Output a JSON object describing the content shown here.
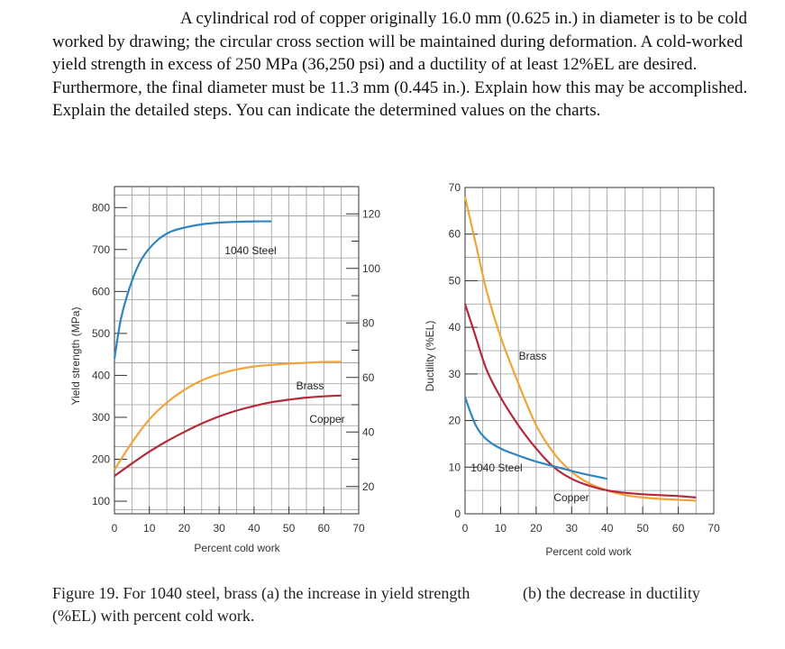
{
  "problem_text": "A cylindrical rod of copper originally 16.0 mm (0.625 in.) in diameter is to be cold worked by drawing; the circular cross section will be maintained during deformation. A cold-worked yield strength in excess of 250 MPa (36,250 psi) and a ductility of at least 12%EL are desired. Furthermore, the final diameter must be 11.3 mm (0.445 in.). Explain how this may be accomplished. Explain the detailed steps. You can indicate the determined values on the charts.",
  "caption_a": "Figure 19. For 1040 steel, brass (a) the increase in yield strength (%EL) with percent cold work.",
  "caption_b": "(b) the decrease in ductility",
  "colors": {
    "steel": "#2e86c1",
    "brass": "#f0a53a",
    "copper": "#b52a3a",
    "grid": "#999999",
    "axis": "#333333"
  },
  "chart_data": [
    {
      "type": "line",
      "xlabel": "Percent cold work",
      "ylabel": "Yield strength (MPa)",
      "xlim": [
        0,
        70
      ],
      "ylim": [
        70,
        850
      ],
      "xticks": [
        0,
        10,
        20,
        30,
        40,
        50,
        60,
        70
      ],
      "yticks": [
        100,
        200,
        300,
        400,
        500,
        600,
        700,
        800
      ],
      "secondary_ylabel_ticks": [
        "120",
        "100",
        "80",
        "60",
        "40",
        "20"
      ],
      "secondary_ytick_values": [
        120,
        100,
        80,
        60,
        40,
        20
      ],
      "secondary_ylim": [
        10,
        130
      ],
      "grid": true,
      "series": [
        {
          "name": "1040 Steel",
          "label": "1040 Steel",
          "color": "steel",
          "x": [
            0,
            2,
            5,
            8,
            12,
            16,
            20,
            25,
            30,
            35,
            40,
            45
          ],
          "y": [
            440,
            540,
            625,
            680,
            720,
            742,
            752,
            760,
            764,
            766,
            767,
            767
          ]
        },
        {
          "name": "Brass",
          "label": "Brass",
          "color": "brass",
          "x": [
            0,
            5,
            10,
            15,
            20,
            25,
            30,
            35,
            40,
            45,
            50,
            55,
            60,
            65
          ],
          "y": [
            175,
            240,
            295,
            335,
            365,
            388,
            403,
            414,
            421,
            425,
            428,
            430,
            432,
            432
          ]
        },
        {
          "name": "Copper",
          "label": "Copper",
          "color": "copper",
          "x": [
            0,
            5,
            10,
            15,
            20,
            25,
            30,
            35,
            40,
            45,
            50,
            55,
            60,
            65
          ],
          "y": [
            160,
            190,
            218,
            243,
            265,
            285,
            302,
            316,
            327,
            336,
            342,
            347,
            350,
            352
          ]
        }
      ]
    },
    {
      "type": "line",
      "xlabel": "Percent cold work",
      "ylabel": "Ductility (%EL)",
      "xlim": [
        0,
        70
      ],
      "ylim": [
        0,
        70
      ],
      "xticks": [
        0,
        10,
        20,
        30,
        40,
        50,
        60,
        70
      ],
      "yticks": [
        0,
        10,
        20,
        30,
        40,
        50,
        60,
        70
      ],
      "grid": true,
      "series": [
        {
          "name": "Brass",
          "label": "Brass",
          "color": "brass",
          "x": [
            0,
            3,
            6,
            10,
            15,
            20,
            25,
            30,
            35,
            40,
            45,
            50,
            55,
            60,
            65
          ],
          "y": [
            68,
            58,
            48,
            38,
            28,
            19,
            13,
            9,
            6.5,
            5,
            4,
            3.5,
            3.2,
            3,
            2.8
          ]
        },
        {
          "name": "Copper",
          "label": "Copper",
          "color": "copper",
          "x": [
            0,
            3,
            6,
            10,
            15,
            20,
            25,
            30,
            35,
            40,
            45,
            50,
            55,
            60,
            65
          ],
          "y": [
            45,
            38,
            31,
            25,
            19,
            14,
            10,
            7.5,
            6,
            5,
            4.5,
            4.2,
            4,
            3.8,
            3.5
          ]
        },
        {
          "name": "1040 Steel",
          "label": "1040 Steel",
          "color": "steel",
          "x": [
            0,
            3,
            6,
            10,
            15,
            20,
            25,
            30,
            35,
            40
          ],
          "y": [
            25,
            19,
            16,
            14,
            12.5,
            11.2,
            10.2,
            9.2,
            8.3,
            7.5
          ]
        }
      ]
    }
  ]
}
